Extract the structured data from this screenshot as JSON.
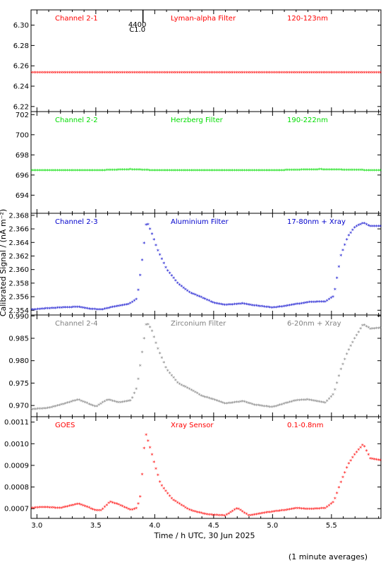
{
  "xlabel": "Time / h UTC, 30 Jun 2025",
  "ylabel": "Calibrated Signal / (nA m⁻²)",
  "footnote": "(1 minute averages)",
  "flare_marker": {
    "x": 3.9,
    "labels": [
      "4400",
      "C1.0"
    ]
  },
  "x_range": [
    2.95,
    5.92
  ],
  "x_ticks": [
    3.0,
    3.5,
    4.0,
    4.5,
    5.0,
    5.5
  ],
  "x_tick_labels": [
    "3.0",
    "3.5",
    "4.0",
    "4.5",
    "5.0",
    "5.5"
  ],
  "chart_data": [
    {
      "type": "scatter",
      "name": "Channel 2-1",
      "filter": "Lyman-alpha Filter",
      "band": "120-123nm",
      "color": "#ff0000",
      "ylim": [
        6.215,
        6.315
      ],
      "yticks": [
        6.22,
        6.24,
        6.26,
        6.28,
        6.3
      ],
      "ytick_labels": [
        "6.22",
        "6.24",
        "6.26",
        "6.28",
        "6.30"
      ],
      "x": [
        3.0,
        3.5,
        4.0,
        4.5,
        5.0,
        5.5,
        5.9
      ],
      "y": [
        6.253,
        6.253,
        6.253,
        6.253,
        6.253,
        6.253,
        6.253
      ]
    },
    {
      "type": "scatter",
      "name": "Channel 2-2",
      "filter": "Herzberg Filter",
      "band": "190-222nm",
      "color": "#00dd00",
      "ylim": [
        692.2,
        702.3
      ],
      "yticks": [
        694,
        696,
        698,
        700,
        702
      ],
      "ytick_labels": [
        "694",
        "696",
        "698",
        "700",
        "702"
      ],
      "x": [
        3.0,
        3.5,
        3.8,
        4.0,
        4.5,
        5.0,
        5.4,
        5.9
      ],
      "y": [
        696.4,
        696.4,
        696.5,
        696.4,
        696.4,
        696.4,
        696.5,
        696.4
      ]
    },
    {
      "type": "scatter",
      "name": "Channel 2-3",
      "filter": "Aluminium Filter",
      "band": "17-80nm + Xray",
      "color": "#0000cc",
      "ylim": [
        2.3533,
        2.3683
      ],
      "yticks": [
        2.354,
        2.356,
        2.358,
        2.36,
        2.362,
        2.364,
        2.366,
        2.368
      ],
      "ytick_labels": [
        "2.354",
        "2.356",
        "2.358",
        "2.360",
        "2.362",
        "2.364",
        "2.366",
        "2.368"
      ],
      "x": [
        2.95,
        3.1,
        3.2,
        3.35,
        3.45,
        3.55,
        3.62,
        3.7,
        3.78,
        3.85,
        3.9,
        3.93,
        3.97,
        4.02,
        4.1,
        4.2,
        4.3,
        4.4,
        4.5,
        4.6,
        4.75,
        4.85,
        5.0,
        5.1,
        5.2,
        5.3,
        5.45,
        5.52,
        5.58,
        5.64,
        5.7,
        5.77,
        5.83,
        5.92
      ],
      "y": [
        2.354,
        2.3542,
        2.3543,
        2.3544,
        2.3541,
        2.354,
        2.3543,
        2.3546,
        2.3548,
        2.3556,
        2.3622,
        2.3671,
        2.3655,
        2.363,
        2.36,
        2.3578,
        2.3565,
        2.3558,
        2.355,
        2.3547,
        2.3549,
        2.3546,
        2.3543,
        2.3545,
        2.3548,
        2.3551,
        2.3552,
        2.356,
        2.362,
        2.3648,
        2.3662,
        2.3668,
        2.3663,
        2.3663
      ]
    },
    {
      "type": "scatter",
      "name": "Channel 2-4",
      "filter": "Zirconium Filter",
      "band": "6-20nm + Xray",
      "color": "#808080",
      "ylim": [
        0.9675,
        0.9902
      ],
      "yticks": [
        0.97,
        0.975,
        0.98,
        0.985,
        0.99
      ],
      "ytick_labels": [
        "0.970",
        "0.975",
        "0.980",
        "0.985",
        "0.990"
      ],
      "x": [
        2.95,
        3.1,
        3.2,
        3.35,
        3.5,
        3.6,
        3.7,
        3.8,
        3.85,
        3.9,
        3.93,
        3.97,
        4.02,
        4.1,
        4.2,
        4.3,
        4.4,
        4.5,
        4.6,
        4.75,
        4.85,
        5.0,
        5.1,
        5.2,
        5.3,
        5.45,
        5.52,
        5.58,
        5.64,
        5.7,
        5.77,
        5.83,
        5.92
      ],
      "y": [
        0.969,
        0.9693,
        0.97,
        0.9712,
        0.9696,
        0.9712,
        0.9705,
        0.971,
        0.974,
        0.983,
        0.9885,
        0.987,
        0.983,
        0.978,
        0.9748,
        0.9735,
        0.972,
        0.9712,
        0.9703,
        0.9708,
        0.97,
        0.9695,
        0.9703,
        0.971,
        0.9712,
        0.9705,
        0.9725,
        0.978,
        0.982,
        0.985,
        0.988,
        0.987,
        0.9872
      ]
    },
    {
      "type": "scatter",
      "name": "GOES",
      "filter": "Xray Sensor",
      "band": "0.1-0.8nm",
      "color": "#ff0000",
      "ylim": [
        0.000655,
        0.001125
      ],
      "yticks": [
        0.0007,
        0.0008,
        0.0009,
        0.001,
        0.0011
      ],
      "ytick_labels": [
        "0.0007",
        "0.0008",
        "0.0009",
        "0.0010",
        "0.0011"
      ],
      "x": [
        2.95,
        3.05,
        3.2,
        3.35,
        3.5,
        3.55,
        3.62,
        3.7,
        3.8,
        3.85,
        3.88,
        3.92,
        3.95,
        4.0,
        4.05,
        4.15,
        4.3,
        4.45,
        4.6,
        4.7,
        4.8,
        4.95,
        5.1,
        5.2,
        5.3,
        5.45,
        5.52,
        5.58,
        5.64,
        5.7,
        5.77,
        5.83,
        5.92
      ],
      "y": [
        0.0007,
        0.000705,
        0.0007,
        0.00072,
        0.00069,
        0.00069,
        0.00073,
        0.000715,
        0.00069,
        0.0007,
        0.00076,
        0.00105,
        0.001,
        0.0009,
        0.00081,
        0.00074,
        0.00069,
        0.00067,
        0.000665,
        0.0007,
        0.000665,
        0.00068,
        0.00069,
        0.0007,
        0.000695,
        0.0007,
        0.00073,
        0.00082,
        0.0009,
        0.00095,
        0.000995,
        0.00093,
        0.00092
      ]
    }
  ]
}
